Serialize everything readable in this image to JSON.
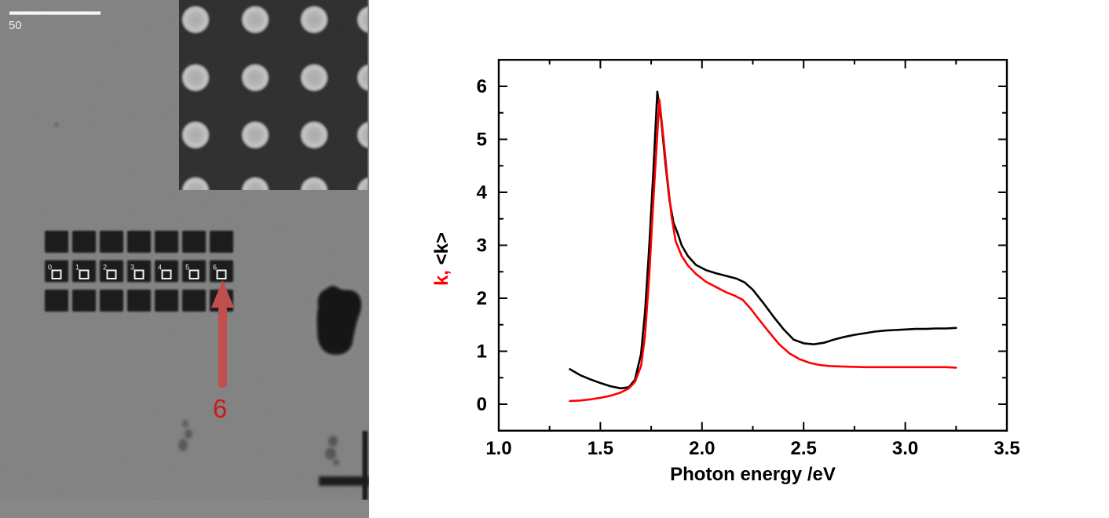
{
  "figure": {
    "background": "#ffffff"
  },
  "micrograph": {
    "scale_bar_label": "50",
    "site_labels": [
      "0",
      "1",
      "2",
      "3",
      "4",
      "5",
      "6"
    ],
    "arrow_label": "6",
    "colors": {
      "background": "#7b7b7b",
      "bottom_strip": "#878787",
      "inset_background": "#161616",
      "square_fill": "#1b1b1b",
      "marker_white": "#f2f2f2",
      "scale_bar": "#f5f5f5",
      "arrow": "#c0504d",
      "arrow_label": "#cb1a15",
      "blob": "#151515"
    }
  },
  "chart_data": {
    "type": "line",
    "title": "",
    "xlabel": "Photon energy /eV",
    "ylabel": "k, <k>",
    "ylabel_segments": [
      {
        "text": "k,",
        "color": "#ff0000"
      },
      {
        "text": " <k>",
        "color": "#000000"
      }
    ],
    "xlim": [
      1.0,
      3.5
    ],
    "ylim": [
      -0.5,
      6.5
    ],
    "x_ticks": [
      1.0,
      1.5,
      2.0,
      2.5,
      3.0,
      3.5
    ],
    "x_tick_labels": [
      "1.0",
      "1.5",
      "2.0",
      "2.5",
      "3.0",
      "3.5"
    ],
    "y_ticks": [
      0,
      1,
      2,
      3,
      4,
      5,
      6
    ],
    "y_tick_labels": [
      "0",
      "1",
      "2",
      "3",
      "4",
      "5",
      "6"
    ],
    "x_minor_step": 0.25,
    "y_minor_step": 0.5,
    "grid": false,
    "legend": "none",
    "axis_color": "#000000",
    "tick_direction": "in",
    "series": [
      {
        "name": "<k>",
        "color": "#000000",
        "points": [
          [
            1.35,
            0.66
          ],
          [
            1.4,
            0.55
          ],
          [
            1.45,
            0.47
          ],
          [
            1.5,
            0.4
          ],
          [
            1.55,
            0.34
          ],
          [
            1.6,
            0.3
          ],
          [
            1.64,
            0.32
          ],
          [
            1.67,
            0.46
          ],
          [
            1.7,
            0.95
          ],
          [
            1.72,
            1.75
          ],
          [
            1.74,
            2.95
          ],
          [
            1.76,
            4.35
          ],
          [
            1.78,
            5.9
          ],
          [
            1.8,
            5.35
          ],
          [
            1.82,
            4.55
          ],
          [
            1.84,
            3.85
          ],
          [
            1.86,
            3.42
          ],
          [
            1.88,
            3.23
          ],
          [
            1.9,
            3.0
          ],
          [
            1.93,
            2.8
          ],
          [
            1.97,
            2.63
          ],
          [
            2.02,
            2.53
          ],
          [
            2.07,
            2.47
          ],
          [
            2.12,
            2.42
          ],
          [
            2.17,
            2.37
          ],
          [
            2.21,
            2.3
          ],
          [
            2.25,
            2.16
          ],
          [
            2.3,
            1.92
          ],
          [
            2.35,
            1.66
          ],
          [
            2.4,
            1.42
          ],
          [
            2.45,
            1.22
          ],
          [
            2.5,
            1.15
          ],
          [
            2.55,
            1.13
          ],
          [
            2.6,
            1.16
          ],
          [
            2.65,
            1.22
          ],
          [
            2.7,
            1.27
          ],
          [
            2.75,
            1.31
          ],
          [
            2.8,
            1.34
          ],
          [
            2.85,
            1.37
          ],
          [
            2.9,
            1.39
          ],
          [
            2.95,
            1.4
          ],
          [
            3.0,
            1.41
          ],
          [
            3.05,
            1.42
          ],
          [
            3.1,
            1.42
          ],
          [
            3.15,
            1.43
          ],
          [
            3.2,
            1.43
          ],
          [
            3.25,
            1.44
          ]
        ]
      },
      {
        "name": "k",
        "color": "#ff0000",
        "points": [
          [
            1.35,
            0.06
          ],
          [
            1.4,
            0.07
          ],
          [
            1.45,
            0.09
          ],
          [
            1.5,
            0.12
          ],
          [
            1.55,
            0.16
          ],
          [
            1.6,
            0.22
          ],
          [
            1.64,
            0.3
          ],
          [
            1.67,
            0.42
          ],
          [
            1.7,
            0.72
          ],
          [
            1.72,
            1.3
          ],
          [
            1.74,
            2.4
          ],
          [
            1.76,
            3.8
          ],
          [
            1.79,
            5.75
          ],
          [
            1.81,
            5.05
          ],
          [
            1.83,
            4.25
          ],
          [
            1.85,
            3.55
          ],
          [
            1.87,
            3.08
          ],
          [
            1.9,
            2.8
          ],
          [
            1.93,
            2.62
          ],
          [
            1.97,
            2.46
          ],
          [
            2.02,
            2.31
          ],
          [
            2.07,
            2.21
          ],
          [
            2.12,
            2.11
          ],
          [
            2.16,
            2.05
          ],
          [
            2.2,
            1.97
          ],
          [
            2.24,
            1.8
          ],
          [
            2.28,
            1.6
          ],
          [
            2.33,
            1.36
          ],
          [
            2.38,
            1.13
          ],
          [
            2.43,
            0.96
          ],
          [
            2.48,
            0.85
          ],
          [
            2.53,
            0.78
          ],
          [
            2.58,
            0.74
          ],
          [
            2.63,
            0.72
          ],
          [
            2.7,
            0.71
          ],
          [
            2.8,
            0.7
          ],
          [
            2.9,
            0.7
          ],
          [
            3.0,
            0.7
          ],
          [
            3.1,
            0.7
          ],
          [
            3.2,
            0.7
          ],
          [
            3.25,
            0.69
          ]
        ]
      }
    ]
  }
}
